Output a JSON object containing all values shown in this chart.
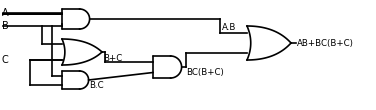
{
  "bg_color": "#ffffff",
  "line_color": "#000000",
  "lw": 1.2,
  "figsize": [
    3.76,
    1.1
  ],
  "dpi": 100,
  "wire_labels": {
    "A": "A",
    "B": "B",
    "C": "C",
    "ab": "A.B",
    "bpc": "B+C",
    "bc": "B.C",
    "bbc": "BC(B+C)",
    "out": "AB+BC(B+C)"
  },
  "font_small": 5.5,
  "font_med": 6.2,
  "font_large": 7.0
}
